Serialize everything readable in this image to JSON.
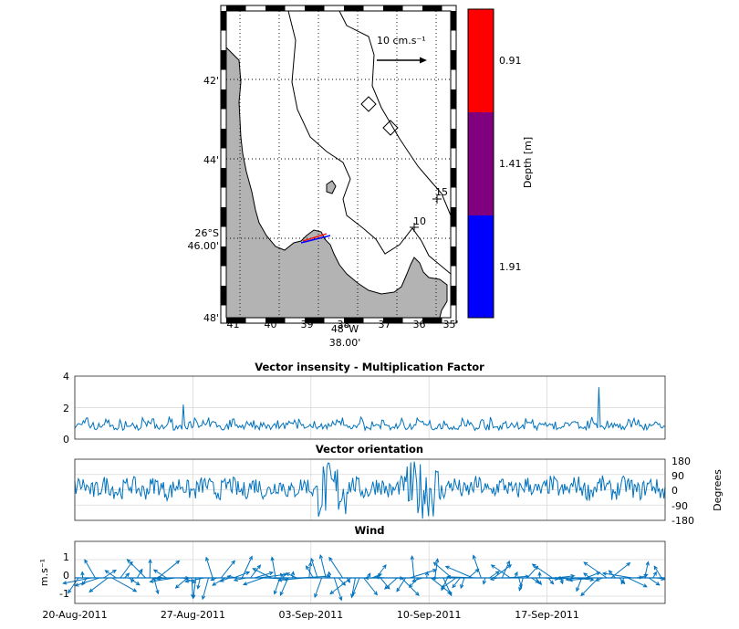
{
  "chart_data": [
    {
      "type": "map",
      "lon_ticks": [
        "41'",
        "40'",
        "39'",
        "38'",
        "37'",
        "36'",
        "35'"
      ],
      "lat_ticks": [
        "42'",
        "44'",
        "26°S 46.00'",
        "48'"
      ],
      "lat_ticks_display": [
        "42'",
        "44'",
        "46.00'",
        "48'"
      ],
      "lat_degree_label": "26°S",
      "lon_degree_label": "48°W",
      "lon_minutes_label": "38.00'",
      "scale_label": "10 cm.s⁻¹",
      "station_labels": [
        "15",
        "10"
      ],
      "colorbar": {
        "label": "Depth [m]",
        "ticks": [
          "0.91",
          "1.41",
          "1.91"
        ],
        "colors": [
          "#ff0000",
          "#800080",
          "#0000ff"
        ]
      }
    },
    {
      "type": "line",
      "title": "Vector insensity - Multiplication Factor",
      "ylim": [
        0,
        4
      ],
      "yticks": [
        "0",
        "2",
        "4"
      ],
      "x_start": "2011-08-20",
      "x_end": "2011-09-24",
      "color": "#0072bd"
    },
    {
      "type": "line",
      "title": "Vector orientation",
      "ylabel": "Degrees",
      "ylim": [
        -180,
        180
      ],
      "yticks": [
        "180",
        "90",
        "0",
        "-90",
        "-180"
      ],
      "x_start": "2011-08-20",
      "x_end": "2011-09-24",
      "color": "#0072bd"
    },
    {
      "type": "quiver",
      "title": "Wind",
      "ylabel": "m.s⁻¹",
      "ylim": [
        -1.5,
        1.5
      ],
      "yticks": [
        "1",
        "0",
        "-1"
      ],
      "xtick_labels": [
        "20-Aug-2011",
        "27-Aug-2011",
        "03-Sep-2011",
        "10-Sep-2011",
        "17-Sep-2011"
      ],
      "x_start": "2011-08-20",
      "x_end": "2011-09-24",
      "color": "#0072bd"
    }
  ]
}
